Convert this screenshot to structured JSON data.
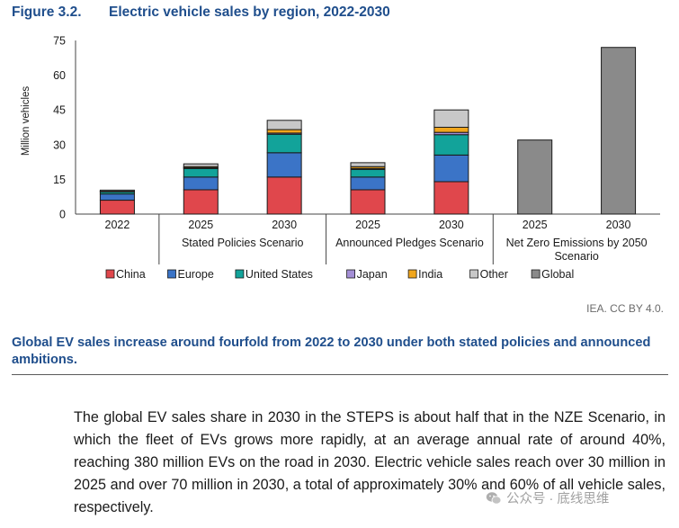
{
  "figure": {
    "number": "Figure 3.2.",
    "title": "Electric vehicle sales by region, 2022-2030"
  },
  "chart_data": {
    "type": "bar",
    "stacked": true,
    "ylabel": "Million vehicles",
    "ylim": [
      0,
      75
    ],
    "yticks": [
      0,
      15,
      30,
      45,
      60,
      75
    ],
    "grid": false,
    "legend_position": "bottom",
    "categories": [
      {
        "label": "2022",
        "group": ""
      },
      {
        "label": "2025",
        "group": "Stated Policies Scenario"
      },
      {
        "label": "2030",
        "group": "Stated Policies Scenario"
      },
      {
        "label": "2025",
        "group": "Announced Pledges Scenario"
      },
      {
        "label": "2030",
        "group": "Announced Pledges Scenario"
      },
      {
        "label": "2025",
        "group": "Net Zero Emissions by 2050 Scenario"
      },
      {
        "label": "2030",
        "group": "Net Zero Emissions by 2050 Scenario"
      }
    ],
    "groups": [
      "",
      "Stated Policies Scenario",
      "Announced Pledges Scenario",
      "Net Zero Emissions by 2050 Scenario"
    ],
    "series": [
      {
        "name": "China",
        "color": "#e0474c",
        "values": [
          6,
          10.5,
          16,
          10.5,
          14,
          0,
          0
        ]
      },
      {
        "name": "Europe",
        "color": "#3b74c7",
        "values": [
          2.7,
          5.5,
          10.5,
          5.5,
          11.5,
          0,
          0
        ]
      },
      {
        "name": "United States",
        "color": "#12a39a",
        "values": [
          1,
          3.7,
          8,
          3.3,
          8.8,
          0,
          0
        ]
      },
      {
        "name": "Japan",
        "color": "#a48fd6",
        "values": [
          0.1,
          0.3,
          0.5,
          0.4,
          1,
          0,
          0
        ]
      },
      {
        "name": "India",
        "color": "#f0a61d",
        "values": [
          0.05,
          0.5,
          1.5,
          0.8,
          2.2,
          0,
          0
        ]
      },
      {
        "name": "Other",
        "color": "#c8c8c8",
        "values": [
          0.5,
          1.2,
          4,
          1.7,
          7.5,
          0,
          0
        ]
      },
      {
        "name": "Global",
        "color": "#8a8a8a",
        "values": [
          0,
          0,
          0,
          0,
          0,
          32,
          72
        ]
      }
    ]
  },
  "attribution": "IEA. CC BY 4.0.",
  "summary": "Global EV sales increase around fourfold from 2022 to 2030 under both stated policies and announced ambitions.",
  "body_text": "The global EV sales share in 2030 in the STEPS is about half that in the NZE Scenario, in which the fleet of EVs grows more rapidly, at an average annual rate of around 40%, reaching 380 million EVs on the road in 2030. Electric vehicle sales reach over 30 million in 2025 and over 70 million in 2030, a total of approximately 30% and 60% of all vehicle sales, respectively.",
  "watermark": {
    "text": "公众号 · 底线思维",
    "icon": "wechat-icon"
  }
}
